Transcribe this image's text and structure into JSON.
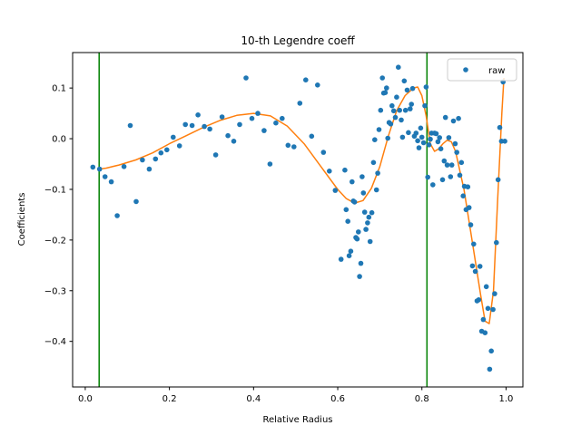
{
  "chart_data": {
    "type": "scatter",
    "title": "10-th Legendre coeff",
    "xlabel": "Relative Radius",
    "ylabel": "Coefficients",
    "xlim": [
      -0.03,
      1.04
    ],
    "ylim": [
      -0.49,
      0.17
    ],
    "xticks": [
      0.0,
      0.2,
      0.4,
      0.6,
      0.8,
      1.0
    ],
    "xtick_labels": [
      "0.0",
      "0.2",
      "0.4",
      "0.6",
      "0.8",
      "1.0"
    ],
    "yticks": [
      -0.4,
      -0.3,
      -0.2,
      -0.1,
      0.0,
      0.1
    ],
    "ytick_labels": [
      "−0.4",
      "−0.3",
      "−0.2",
      "−0.1",
      "0.0",
      "0.1"
    ],
    "legend": {
      "entries": [
        "raw"
      ],
      "placement": "top-right"
    },
    "colors": {
      "raw": "#1f77b4",
      "fit": "#ff7f0e",
      "vlines": "#008000"
    },
    "vlines": [
      0.033,
      0.812
    ],
    "series": [
      {
        "name": "raw",
        "kind": "scatter",
        "x": [
          0.018,
          0.034,
          0.047,
          0.062,
          0.076,
          0.092,
          0.107,
          0.121,
          0.136,
          0.152,
          0.167,
          0.18,
          0.194,
          0.209,
          0.224,
          0.238,
          0.254,
          0.268,
          0.283,
          0.296,
          0.31,
          0.325,
          0.339,
          0.353,
          0.367,
          0.382,
          0.396,
          0.41,
          0.425,
          0.439,
          0.453,
          0.468,
          0.482,
          0.496,
          0.51,
          0.524,
          0.538,
          0.552,
          0.566,
          0.58,
          0.594,
          0.608,
          0.617,
          0.62,
          0.624,
          0.627,
          0.631,
          0.634,
          0.637,
          0.64,
          0.643,
          0.646,
          0.649,
          0.652,
          0.655,
          0.658,
          0.661,
          0.664,
          0.667,
          0.671,
          0.674,
          0.677,
          0.681,
          0.685,
          0.688,
          0.692,
          0.695,
          0.698,
          0.702,
          0.706,
          0.709,
          0.713,
          0.716,
          0.719,
          0.722,
          0.726,
          0.729,
          0.733,
          0.737,
          0.74,
          0.744,
          0.747,
          0.751,
          0.754,
          0.758,
          0.761,
          0.765,
          0.768,
          0.772,
          0.775,
          0.778,
          0.782,
          0.786,
          0.79,
          0.793,
          0.797,
          0.8,
          0.804,
          0.807,
          0.81,
          0.814,
          0.817,
          0.82,
          0.823,
          0.826,
          0.83,
          0.834,
          0.838,
          0.842,
          0.845,
          0.849,
          0.853,
          0.856,
          0.86,
          0.864,
          0.868,
          0.871,
          0.875,
          0.879,
          0.883,
          0.887,
          0.89,
          0.894,
          0.898,
          0.901,
          0.905,
          0.909,
          0.912,
          0.916,
          0.92,
          0.923,
          0.927,
          0.931,
          0.935,
          0.938,
          0.942,
          0.946,
          0.95,
          0.953,
          0.957,
          0.961,
          0.965,
          0.969,
          0.973,
          0.977,
          0.981,
          0.985,
          0.989,
          0.993,
          0.997
        ],
        "y": [
          -0.056,
          -0.06,
          -0.075,
          -0.085,
          -0.152,
          -0.055,
          0.026,
          -0.124,
          -0.042,
          -0.06,
          -0.04,
          -0.028,
          -0.022,
          0.003,
          -0.014,
          0.028,
          0.026,
          0.047,
          0.024,
          0.019,
          -0.032,
          0.043,
          0.006,
          -0.005,
          0.028,
          0.12,
          0.04,
          0.05,
          0.016,
          -0.05,
          0.031,
          0.04,
          -0.013,
          -0.016,
          0.07,
          0.116,
          0.005,
          0.106,
          -0.027,
          -0.064,
          -0.102,
          -0.238,
          -0.062,
          -0.14,
          -0.163,
          -0.231,
          -0.222,
          -0.085,
          -0.123,
          -0.125,
          -0.195,
          -0.198,
          -0.184,
          -0.272,
          -0.246,
          -0.075,
          -0.107,
          -0.145,
          -0.179,
          -0.166,
          -0.155,
          -0.203,
          -0.146,
          -0.047,
          -0.002,
          -0.101,
          -0.068,
          0.018,
          0.056,
          0.12,
          0.09,
          0.091,
          0.1,
          0.001,
          0.032,
          0.029,
          0.065,
          0.055,
          0.042,
          0.082,
          0.141,
          0.056,
          0.037,
          0.003,
          0.114,
          0.056,
          0.096,
          0.012,
          0.059,
          0.068,
          0.099,
          0.005,
          0.011,
          -0.004,
          -0.018,
          0.021,
          0.003,
          -0.008,
          0.065,
          0.102,
          -0.076,
          -0.012,
          -0.001,
          0.011,
          -0.091,
          0.011,
          0.01,
          -0.006,
          0.002,
          -0.02,
          -0.081,
          -0.044,
          0.042,
          -0.052,
          0.002,
          -0.075,
          -0.052,
          0.035,
          -0.01,
          -0.027,
          0.04,
          -0.072,
          -0.047,
          -0.113,
          -0.094,
          -0.14,
          -0.095,
          -0.136,
          -0.17,
          -0.251,
          -0.208,
          -0.262,
          -0.32,
          -0.318,
          -0.252,
          -0.38,
          -0.357,
          -0.383,
          -0.292,
          -0.335,
          -0.455,
          -0.419,
          -0.337,
          -0.306,
          -0.205,
          -0.081,
          0.022,
          -0.005,
          0.112,
          -0.005
        ]
      },
      {
        "name": "",
        "kind": "line",
        "x": [
          0.033,
          0.05,
          0.08,
          0.12,
          0.16,
          0.2,
          0.24,
          0.28,
          0.32,
          0.36,
          0.4,
          0.44,
          0.48,
          0.52,
          0.56,
          0.6,
          0.62,
          0.64,
          0.66,
          0.68,
          0.7,
          0.72,
          0.74,
          0.76,
          0.78,
          0.79,
          0.8,
          0.81,
          0.82,
          0.83,
          0.84,
          0.85,
          0.86,
          0.87,
          0.88,
          0.9,
          0.92,
          0.94,
          0.95,
          0.96,
          0.97,
          0.98,
          0.99,
          0.995
        ],
        "y": [
          -0.06,
          -0.058,
          -0.052,
          -0.042,
          -0.028,
          -0.01,
          0.006,
          0.022,
          0.036,
          0.046,
          0.05,
          0.045,
          0.025,
          -0.01,
          -0.055,
          -0.1,
          -0.118,
          -0.127,
          -0.122,
          -0.098,
          -0.055,
          0.005,
          0.055,
          0.085,
          0.1,
          0.102,
          0.085,
          0.045,
          -0.01,
          -0.025,
          -0.02,
          -0.01,
          -0.003,
          -0.006,
          -0.025,
          -0.1,
          -0.205,
          -0.31,
          -0.36,
          -0.365,
          -0.3,
          -0.12,
          0.05,
          0.12
        ]
      }
    ]
  }
}
